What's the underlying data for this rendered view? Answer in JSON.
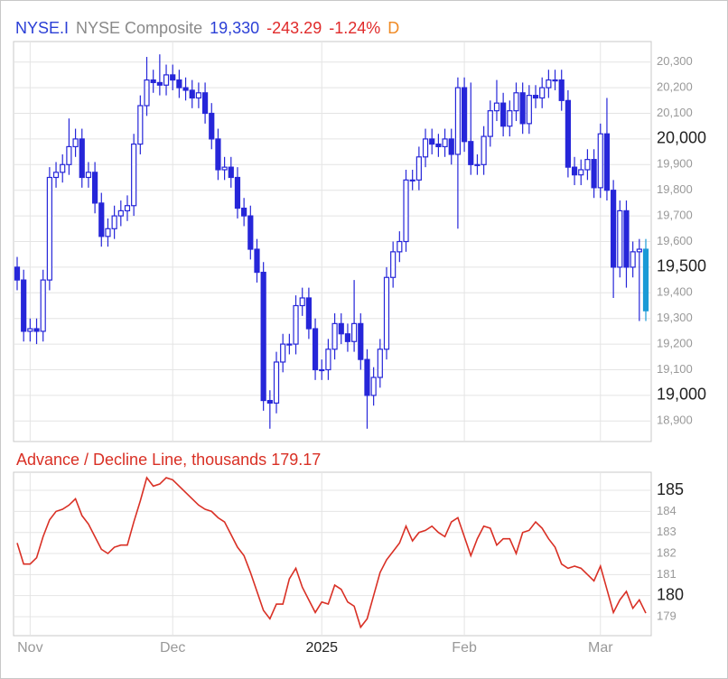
{
  "header": {
    "symbol": "NYSE.I",
    "name": "NYSE Composite",
    "last": "19,330",
    "change": "-243.29",
    "change_pct": "-1.24%",
    "period": "D"
  },
  "chart_data": [
    {
      "type": "candlestick",
      "xlim": [
        0,
        97
      ],
      "ylim": [
        18820,
        20380
      ],
      "yticks": [
        {
          "value": 18900,
          "label": "18,900"
        },
        {
          "value": 19000,
          "label": "19,000"
        },
        {
          "value": 19100,
          "label": "19,100"
        },
        {
          "value": 19200,
          "label": "19,200"
        },
        {
          "value": 19300,
          "label": "19,300"
        },
        {
          "value": 19400,
          "label": "19,400"
        },
        {
          "value": 19500,
          "label": "19,500"
        },
        {
          "value": 19600,
          "label": "19,600"
        },
        {
          "value": 19700,
          "label": "19,700"
        },
        {
          "value": 19800,
          "label": "19,800"
        },
        {
          "value": 19900,
          "label": "19,900"
        },
        {
          "value": 20000,
          "label": "20,000"
        },
        {
          "value": 20100,
          "label": "20,100"
        },
        {
          "value": 20200,
          "label": "20,200"
        },
        {
          "value": 20300,
          "label": "20,300"
        }
      ],
      "grid": true,
      "up_color": "#ffffff",
      "down_color": "#2626d9",
      "last_color": "#1a9ad6",
      "open": [
        19500,
        19450,
        19250,
        19260,
        19250,
        19450,
        19850,
        19870,
        19900,
        19970,
        20000,
        19850,
        19870,
        19750,
        19620,
        19650,
        19700,
        19720,
        19740,
        19980,
        20130,
        20230,
        20220,
        20210,
        20250,
        20230,
        20200,
        20190,
        20160,
        20180,
        20100,
        20000,
        19880,
        19890,
        19850,
        19730,
        19700,
        19570,
        19480,
        18980,
        18970,
        19130,
        19200,
        19200,
        19350,
        19380,
        19260,
        19100,
        19100,
        19180,
        19280,
        19240,
        19210,
        19280,
        19140,
        19000,
        19070,
        19180,
        19460,
        19560,
        19600,
        19840,
        19840,
        19930,
        20000,
        19980,
        19970,
        20000,
        19940,
        20200,
        19990,
        19900,
        19900,
        20010,
        20110,
        20140,
        20050,
        20110,
        20180,
        20060,
        20170,
        20160,
        20200,
        20230,
        20230,
        20150,
        19890,
        19860,
        19880,
        19920,
        19810,
        20020,
        19800,
        19500,
        19720,
        19500,
        19560,
        19570
      ],
      "high": [
        19540,
        19490,
        19300,
        19300,
        19490,
        19890,
        19910,
        19940,
        20080,
        20040,
        20040,
        19910,
        19910,
        19790,
        19690,
        19740,
        19760,
        19780,
        20020,
        20170,
        20320,
        20270,
        20330,
        20290,
        20290,
        20270,
        20240,
        20230,
        20220,
        20220,
        20140,
        20040,
        19930,
        19930,
        19890,
        19770,
        19740,
        19610,
        19520,
        19020,
        19170,
        19240,
        19240,
        19390,
        19420,
        19420,
        19300,
        19140,
        19220,
        19320,
        19320,
        19280,
        19450,
        19320,
        19180,
        19110,
        19220,
        19500,
        19600,
        19640,
        19880,
        19880,
        19970,
        20040,
        20040,
        20020,
        20040,
        20040,
        20240,
        20240,
        20220,
        19940,
        20050,
        20150,
        20230,
        20180,
        20150,
        20220,
        20220,
        20210,
        20210,
        20240,
        20270,
        20270,
        20270,
        20190,
        19930,
        19920,
        19960,
        19960,
        20060,
        20160,
        19840,
        19760,
        19760,
        19600,
        19610,
        19610
      ],
      "low": [
        19410,
        19210,
        19210,
        19200,
        19210,
        19410,
        19810,
        19830,
        19860,
        19930,
        19810,
        19810,
        19710,
        19580,
        19580,
        19610,
        19660,
        19680,
        19700,
        19940,
        20090,
        20180,
        20170,
        20170,
        20190,
        20160,
        20150,
        20120,
        20120,
        20060,
        19960,
        19840,
        19840,
        19810,
        19690,
        19660,
        19530,
        19440,
        18940,
        18870,
        18930,
        19090,
        19160,
        19160,
        19310,
        19220,
        19060,
        19060,
        19060,
        19140,
        19200,
        19170,
        19170,
        19100,
        18870,
        18960,
        19030,
        19140,
        19420,
        19520,
        19560,
        19800,
        19800,
        19890,
        19940,
        19930,
        19930,
        19900,
        19650,
        19950,
        19860,
        19860,
        19860,
        19970,
        20070,
        20010,
        20010,
        20070,
        20020,
        20020,
        20120,
        20120,
        20160,
        20190,
        20110,
        19850,
        19820,
        19820,
        19840,
        19770,
        19770,
        19760,
        19380,
        19460,
        19420,
        19460,
        19290,
        19290
      ],
      "close": [
        19450,
        19250,
        19260,
        19250,
        19450,
        19850,
        19870,
        19900,
        19970,
        20000,
        19850,
        19870,
        19750,
        19620,
        19650,
        19700,
        19720,
        19740,
        19980,
        20130,
        20230,
        20220,
        20210,
        20250,
        20230,
        20200,
        20190,
        20160,
        20180,
        20100,
        20000,
        19880,
        19890,
        19850,
        19730,
        19700,
        19570,
        19480,
        18980,
        18970,
        19130,
        19200,
        19200,
        19350,
        19380,
        19260,
        19100,
        19100,
        19180,
        19280,
        19240,
        19210,
        19280,
        19140,
        19000,
        19070,
        19180,
        19460,
        19560,
        19600,
        19840,
        19840,
        19930,
        20000,
        19980,
        19970,
        20000,
        19940,
        20200,
        19990,
        19900,
        19900,
        20010,
        20110,
        20140,
        20050,
        20110,
        20180,
        20060,
        20170,
        20160,
        20200,
        20230,
        20230,
        20150,
        19890,
        19860,
        19880,
        19920,
        19810,
        20020,
        19800,
        19500,
        19720,
        19500,
        19560,
        19570,
        19330
      ]
    },
    {
      "type": "line",
      "title": "Advance / Decline Line, thousands",
      "xlim": [
        0,
        97
      ],
      "ylim": [
        178.1,
        185.86
      ],
      "yticks": [
        179,
        180,
        181,
        182,
        183,
        184,
        185
      ],
      "xticks": [
        {
          "value": 2,
          "label": "Nov"
        },
        {
          "value": 24,
          "label": "Dec"
        },
        {
          "value": 47,
          "label": "2025"
        },
        {
          "value": 69,
          "label": "Feb"
        },
        {
          "value": 90,
          "label": "Mar"
        }
      ],
      "grid": true,
      "color": "#d93025",
      "values": [
        182.5,
        181.5,
        181.5,
        181.8,
        182.8,
        183.6,
        184.0,
        184.1,
        184.3,
        184.6,
        183.8,
        183.4,
        182.8,
        182.2,
        182.0,
        182.3,
        182.4,
        182.4,
        183.5,
        184.5,
        185.6,
        185.2,
        185.3,
        185.6,
        185.5,
        185.2,
        184.9,
        184.6,
        184.3,
        184.1,
        184.0,
        183.7,
        183.5,
        182.9,
        182.3,
        181.9,
        181.1,
        180.2,
        179.3,
        178.9,
        179.6,
        179.6,
        180.8,
        181.3,
        180.4,
        179.8,
        179.2,
        179.7,
        179.6,
        180.5,
        180.3,
        179.7,
        179.5,
        178.5,
        178.9,
        180.0,
        181.1,
        181.7,
        182.1,
        182.5,
        183.3,
        182.6,
        183.0,
        183.1,
        183.3,
        183.0,
        182.8,
        183.5,
        183.7,
        182.8,
        181.9,
        182.7,
        183.3,
        183.2,
        182.4,
        182.7,
        182.7,
        182.0,
        183.0,
        183.1,
        183.5,
        183.2,
        182.7,
        182.3,
        181.5,
        181.3,
        181.4,
        181.3,
        181.0,
        180.7,
        181.4,
        180.3,
        179.2,
        179.8,
        180.2,
        179.4,
        179.8,
        179.17
      ]
    }
  ]
}
